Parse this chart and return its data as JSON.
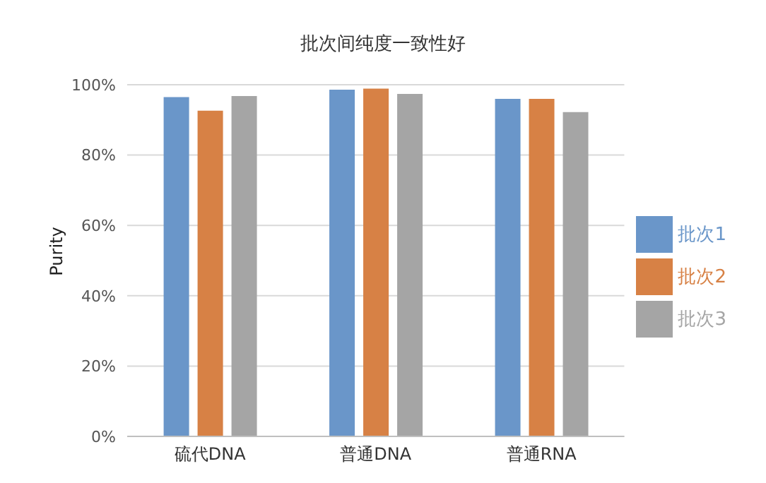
{
  "chart_data": {
    "type": "bar",
    "title": "批次间纯度一致性好",
    "ylabel": "Purity",
    "categories": [
      "硫代DNA",
      "普通DNA",
      "普通RNA"
    ],
    "series": [
      {
        "name": "批次1",
        "color": "#6a96c9",
        "values": [
          96.5,
          98.6,
          96
        ]
      },
      {
        "name": "批次2",
        "color": "#d78145",
        "values": [
          92.6,
          98.9,
          96
        ]
      },
      {
        "name": "批次3",
        "color": "#a5a5a5",
        "values": [
          96.8,
          97.4,
          92.2
        ]
      }
    ],
    "ylim": [
      0,
      100
    ],
    "yticks": [
      {
        "value": 0,
        "label": "0%"
      },
      {
        "value": 20,
        "label": "20%"
      },
      {
        "value": 40,
        "label": "40%"
      },
      {
        "value": 60,
        "label": "60%"
      },
      {
        "value": 80,
        "label": "80%"
      },
      {
        "value": 100,
        "label": "100%"
      }
    ],
    "grid": "y",
    "legend": "right"
  }
}
